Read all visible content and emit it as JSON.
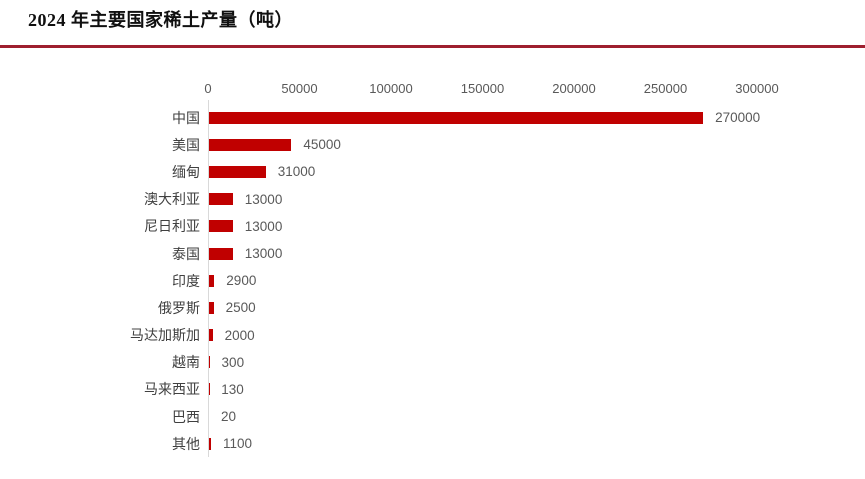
{
  "header": {
    "title": "2024 年主要国家稀土产量（吨）",
    "divider_color": "#9E1F2E"
  },
  "chart_data": {
    "type": "bar",
    "orientation": "horizontal",
    "title": "2024 年主要国家稀土产量（吨）",
    "categories": [
      "中国",
      "美国",
      "缅甸",
      "澳大利亚",
      "尼日利亚",
      "泰国",
      "印度",
      "俄罗斯",
      "马达加斯加",
      "越南",
      "马来西亚",
      "巴西",
      "其他"
    ],
    "values": [
      270000,
      45000,
      31000,
      13000,
      13000,
      13000,
      2900,
      2500,
      2000,
      300,
      130,
      20,
      1100
    ],
    "value_labels": [
      "270000",
      "45000",
      "31000",
      "13000",
      "13000",
      "13000",
      "2900",
      "2500",
      "2000",
      "300",
      "130",
      "20",
      "1100"
    ],
    "x_ticks": [
      0,
      50000,
      100000,
      150000,
      200000,
      250000,
      300000
    ],
    "x_tick_labels": [
      "0",
      "50000",
      "100000",
      "150000",
      "200000",
      "250000",
      "300000"
    ],
    "xlim": [
      0,
      300000
    ],
    "xlabel": "",
    "ylabel": "",
    "grid": false,
    "legend": false,
    "bar_color": "#C00000",
    "axis_line_color": "#D9D9D9",
    "tick_label_color": "#595959",
    "category_label_color": "#404040",
    "value_label_color": "#595959"
  }
}
